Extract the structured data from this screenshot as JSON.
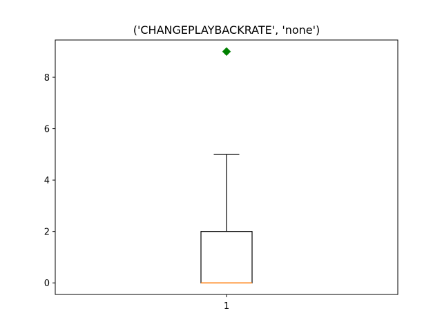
{
  "chart_data": {
    "type": "box",
    "title": "('CHANGEPLAYBACKRATE', 'none')",
    "xlabel": "",
    "ylabel": "",
    "categories": [
      "1"
    ],
    "ylim": [
      -0.45,
      9.45
    ],
    "yticks": [
      0,
      2,
      4,
      6,
      8
    ],
    "grid": false,
    "box": {
      "whisker_low": 0,
      "q1": 0,
      "median": 0,
      "q3": 2,
      "whisker_high": 5
    },
    "outliers": [
      9
    ],
    "colors": {
      "box": "#000000",
      "median": "#ff7f0e",
      "outlier": "#008000"
    }
  }
}
